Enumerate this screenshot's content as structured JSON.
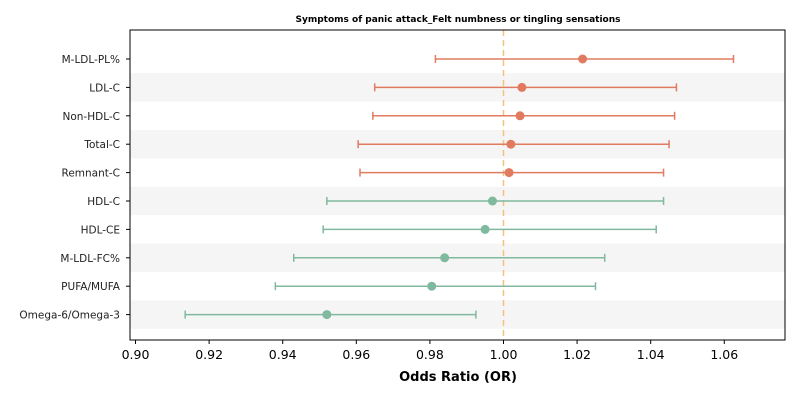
{
  "chart_data": {
    "type": "forest",
    "title": "Symptoms of panic attack_Felt numbness or tingling sensations",
    "xlabel": "Odds Ratio (OR)",
    "xlim": [
      0.8985,
      1.0765
    ],
    "xticks": [
      "0.90",
      "0.92",
      "0.94",
      "0.96",
      "0.98",
      "1.00",
      "1.02",
      "1.04",
      "1.06"
    ],
    "reference_line": 1.0,
    "reference_color": "#f4c07a",
    "colors": {
      "positive": "#e07b60",
      "negative": "#7fb99e",
      "band": "#f5f5f5"
    },
    "rows": [
      {
        "label": "M-LDL-PL%",
        "or": 1.0215,
        "lo": 0.9815,
        "hi": 1.0625,
        "group": "positive"
      },
      {
        "label": "LDL-C",
        "or": 1.005,
        "lo": 0.965,
        "hi": 1.047,
        "group": "positive"
      },
      {
        "label": "Non-HDL-C",
        "or": 1.0045,
        "lo": 0.9645,
        "hi": 1.0465,
        "group": "positive"
      },
      {
        "label": "Total-C",
        "or": 1.002,
        "lo": 0.9605,
        "hi": 1.045,
        "group": "positive"
      },
      {
        "label": "Remnant-C",
        "or": 1.0015,
        "lo": 0.961,
        "hi": 1.0435,
        "group": "positive"
      },
      {
        "label": "HDL-C",
        "or": 0.997,
        "lo": 0.952,
        "hi": 1.0435,
        "group": "negative"
      },
      {
        "label": "HDL-CE",
        "or": 0.995,
        "lo": 0.951,
        "hi": 1.0415,
        "group": "negative"
      },
      {
        "label": "M-LDL-FC%",
        "or": 0.984,
        "lo": 0.943,
        "hi": 1.0275,
        "group": "negative"
      },
      {
        "label": "PUFA/MUFA",
        "or": 0.9805,
        "lo": 0.938,
        "hi": 1.025,
        "group": "negative"
      },
      {
        "label": "Omega-6/Omega-3",
        "or": 0.952,
        "lo": 0.9135,
        "hi": 0.9925,
        "group": "negative"
      }
    ]
  }
}
